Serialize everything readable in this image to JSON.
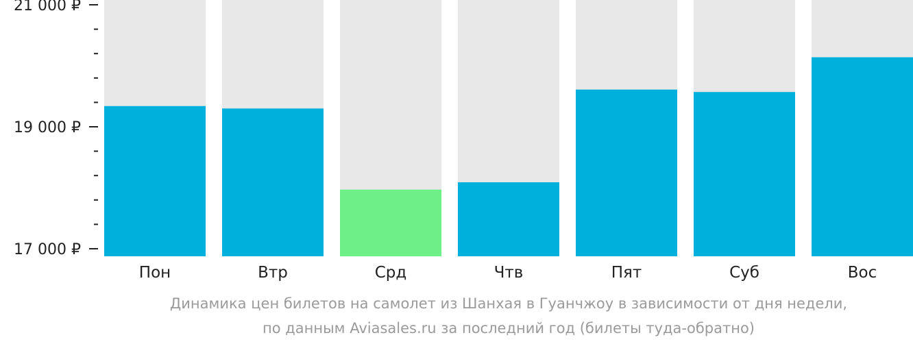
{
  "colors": {
    "bar": "#00b0dc",
    "bar_highlight": "#6cf087",
    "track": "#e8e8e8",
    "axis": "#222222",
    "caption": "#9a9a9a"
  },
  "chart_data": {
    "type": "bar",
    "categories": [
      "Пон",
      "Втр",
      "Срд",
      "Чтв",
      "Пят",
      "Суб",
      "Вос"
    ],
    "values": [
      19340,
      19300,
      17970,
      18090,
      19610,
      19570,
      20140
    ],
    "highlight_index": 2,
    "ylim": [
      17000,
      21000
    ],
    "yticks": [
      {
        "value": 21000,
        "label": "21 000 ₽"
      },
      {
        "value": 19000,
        "label": "19 000 ₽"
      },
      {
        "value": 17000,
        "label": "17 000 ₽"
      }
    ],
    "minor_tick_step": 400,
    "grid": false,
    "xlabel": "",
    "ylabel": ""
  },
  "caption": {
    "line1": "Динамика цен билетов на самолет из Шанхая в Гуанчжоу в зависимости от дня недели,",
    "line2": "по данным Aviasales.ru за последний год (билеты туда-обратно)"
  }
}
